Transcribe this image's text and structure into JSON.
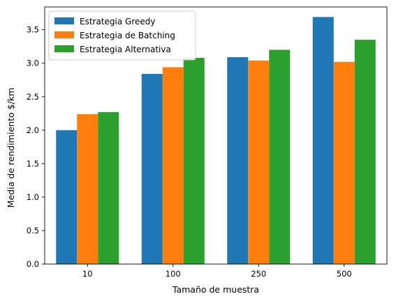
{
  "chart_data": {
    "type": "bar",
    "title": "",
    "xlabel": "Tamaño de muestra",
    "ylabel": "Media de rendimiento $/km",
    "categories": [
      "10",
      "100",
      "250",
      "500"
    ],
    "series": [
      {
        "name": "Estrategia Greedy",
        "color": "#1f77b4",
        "values": [
          2.0,
          2.84,
          3.09,
          3.69
        ]
      },
      {
        "name": "Estrategia de Batching",
        "color": "#ff7f0e",
        "values": [
          2.24,
          2.94,
          3.04,
          3.02
        ]
      },
      {
        "name": "Estrategia Alternativa",
        "color": "#2ca02c",
        "values": [
          2.27,
          3.08,
          3.2,
          3.35
        ]
      }
    ],
    "ylim": [
      0,
      3.84
    ],
    "yticks": [
      "0.0",
      "0.5",
      "1.0",
      "1.5",
      "2.0",
      "2.5",
      "3.0",
      "3.5"
    ],
    "grid": false,
    "legend_position": "top-left"
  }
}
